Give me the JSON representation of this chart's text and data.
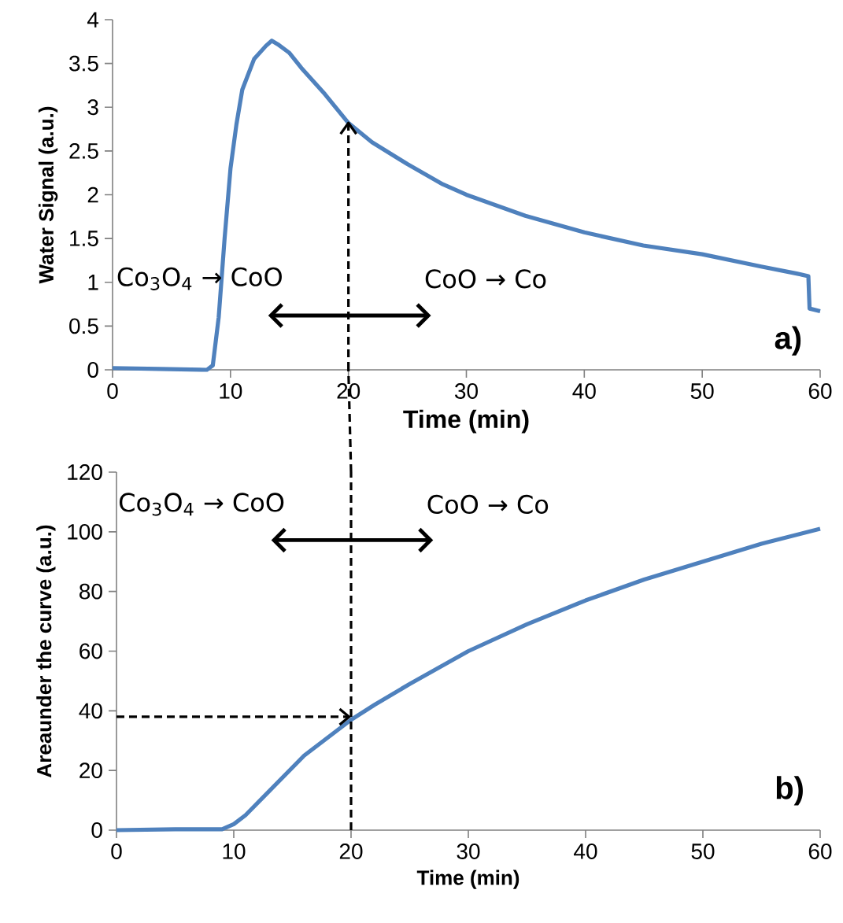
{
  "chart_data": [
    {
      "type": "line",
      "ylabel": "Water Signal (a.u.)",
      "xlabel": "Time (min)",
      "xlim": [
        0,
        60
      ],
      "ylim": [
        0,
        4
      ],
      "xticks": [
        0,
        10,
        20,
        30,
        40,
        50,
        60
      ],
      "yticks": [
        0,
        0.5,
        1,
        1.5,
        2,
        2.5,
        3,
        3.5,
        4
      ],
      "series": [
        {
          "color": "#4f81bd",
          "x": [
            0,
            4,
            8,
            8.5,
            9,
            9.5,
            10,
            10.5,
            11,
            12,
            13,
            13.5,
            14,
            15,
            16,
            18,
            20,
            22,
            25,
            28,
            30,
            35,
            40,
            45,
            50,
            55,
            58,
            59,
            59.1,
            60
          ],
          "values": [
            0.02,
            0.01,
            0,
            0.05,
            0.6,
            1.5,
            2.3,
            2.8,
            3.2,
            3.55,
            3.7,
            3.76,
            3.72,
            3.62,
            3.45,
            3.15,
            2.82,
            2.6,
            2.35,
            2.12,
            2.0,
            1.76,
            1.57,
            1.42,
            1.32,
            1.18,
            1.1,
            1.07,
            0.7,
            0.67
          ]
        }
      ],
      "ref_lines": [
        {
          "axis": "x",
          "value": 20,
          "line_style": "dashed"
        }
      ],
      "annotations": [
        "Co$_{3}$O$_{4}$ → CoO",
        "CoO → Co",
        "a)"
      ]
    },
    {
      "type": "line",
      "ylabel": "Areaunder the curve (a.u.)",
      "xlabel": "Time (min)",
      "xlim": [
        0,
        60
      ],
      "ylim": [
        0,
        120
      ],
      "xticks": [
        0,
        10,
        20,
        30,
        40,
        50,
        60
      ],
      "yticks": [
        0,
        20,
        40,
        60,
        80,
        100,
        120
      ],
      "series": [
        {
          "color": "#4f81bd",
          "x": [
            0,
            5,
            9,
            10,
            11,
            12,
            14,
            15,
            16,
            18,
            20,
            22,
            25,
            30,
            35,
            40,
            45,
            50,
            55,
            60
          ],
          "values": [
            0,
            0.3,
            0.3,
            2,
            5,
            9,
            17,
            21,
            25,
            31,
            37,
            42,
            49,
            60,
            69,
            77,
            84,
            90,
            96,
            101
          ]
        }
      ],
      "ref_lines": [
        {
          "axis": "x",
          "value": 20,
          "line_style": "dashed"
        },
        {
          "axis": "y",
          "value": 38,
          "line_style": "dashed"
        }
      ],
      "annotations": [
        "Co$_{3}$O$_{4}$ → CoO",
        "CoO → Co",
        "b)"
      ]
    }
  ]
}
